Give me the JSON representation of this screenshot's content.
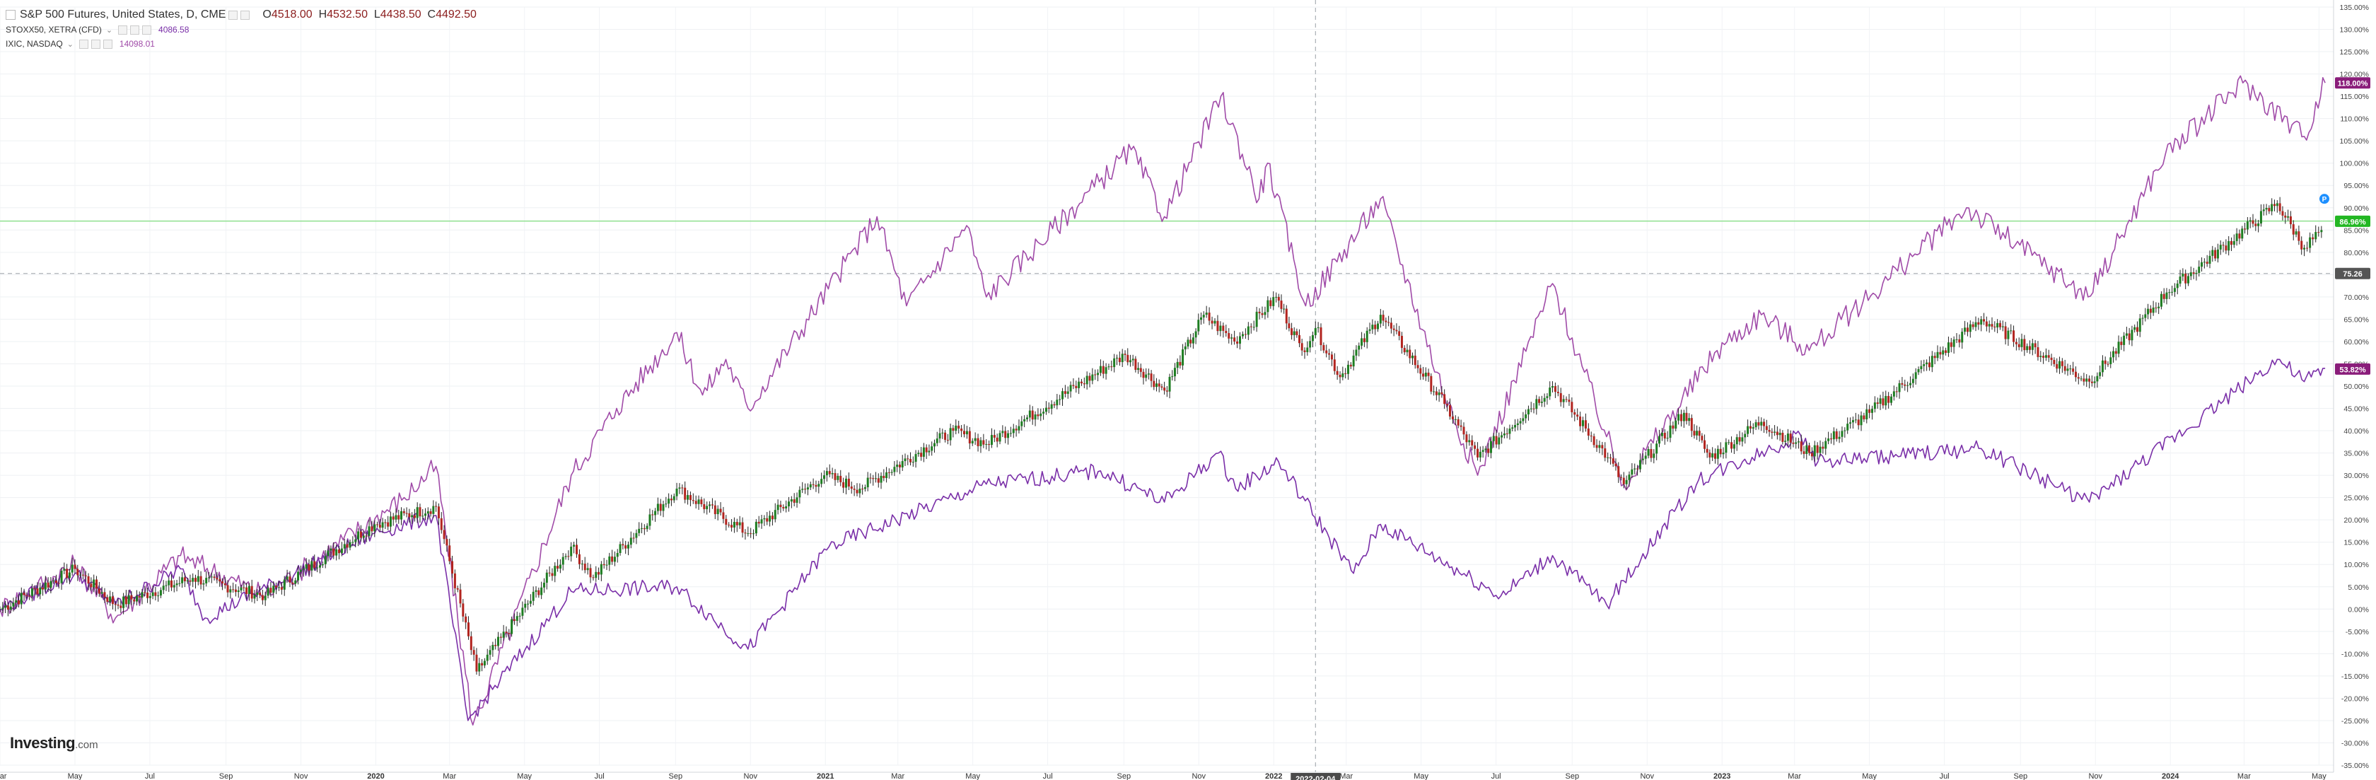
{
  "legend": {
    "main": {
      "symbol": "S&P 500 Futures, United States, D, CME",
      "o_label": "O",
      "o": "4518.00",
      "h_label": "H",
      "h": "4532.50",
      "l_label": "L",
      "l": "4438.50",
      "c_label": "C",
      "c": "4492.50"
    },
    "series2": {
      "symbol": "STOXX50, XETRA (CFD)",
      "value": "4086.58"
    },
    "series3": {
      "symbol": "IXIC, NASDAQ",
      "value": "14098.01"
    }
  },
  "watermark": {
    "bold": "Investing",
    "suffix": ".com"
  },
  "crosshair_label": "2022-02-04",
  "price_tags": {
    "ixic": "118.00%",
    "sp": "86.96%",
    "ref": "75.26",
    "stoxx": "53.82%",
    "marker": "P"
  },
  "colors": {
    "candle_up": "#1e7d22",
    "candle_down": "#b2241f",
    "candle_wick": "#222222",
    "ixic": "#a04ba8",
    "stoxx": "#7a2fa8",
    "sp_tag": "#23b723",
    "ixic_tag": "#8a1d7a",
    "stoxx_tag": "#8a1d7a",
    "ref_tag": "#555555",
    "hline": "#8fe08f",
    "marker": "#1e90ff"
  },
  "chart_data": {
    "type": "line",
    "title": "S&P 500 Futures, United States, D, CME",
    "y_unit": "percent change",
    "ylim": [
      -35,
      135
    ],
    "y_ticks": [
      "135.00%",
      "130.00%",
      "125.00%",
      "120.00%",
      "115.00%",
      "110.00%",
      "105.00%",
      "100.00%",
      "95.00%",
      "90.00%",
      "85.00%",
      "80.00%",
      "75.00%",
      "70.00%",
      "65.00%",
      "60.00%",
      "55.00%",
      "50.00%",
      "45.00%",
      "40.00%",
      "35.00%",
      "30.00%",
      "25.00%",
      "20.00%",
      "15.00%",
      "10.00%",
      "5.00%",
      "0.00%",
      "-5.00%",
      "-10.00%",
      "-15.00%",
      "-20.00%",
      "-25.00%",
      "-30.00%",
      "-35.00%"
    ],
    "x_ticks": [
      "Mar",
      "May",
      "Jul",
      "Sep",
      "Nov",
      "2020",
      "Mar",
      "May",
      "Jul",
      "Sep",
      "Nov",
      "2021",
      "Mar",
      "May",
      "Jul",
      "Sep",
      "Nov",
      "2022",
      "Mar",
      "May",
      "Jul",
      "Sep",
      "Nov",
      "2023",
      "Mar",
      "May",
      "Jul",
      "Sep",
      "Nov",
      "2024",
      "Mar",
      "May"
    ],
    "x_tick_dates": [
      "2019-03",
      "2019-05",
      "2019-07",
      "2019-09",
      "2019-11",
      "2020-01",
      "2020-03",
      "2020-05",
      "2020-07",
      "2020-09",
      "2020-11",
      "2021-01",
      "2021-03",
      "2021-05",
      "2021-07",
      "2021-09",
      "2021-11",
      "2022-01",
      "2022-03",
      "2022-05",
      "2022-07",
      "2022-09",
      "2022-11",
      "2023-01",
      "2023-03",
      "2023-05",
      "2023-07",
      "2023-09",
      "2023-11",
      "2024-01",
      "2024-03",
      "2024-05"
    ],
    "xlim": [
      "2019-03-01",
      "2024-05-10"
    ],
    "reference_line": 87,
    "ref_dashed": 75.26,
    "crosshair_x": "2022-02-04",
    "grid": true,
    "series": [
      {
        "name": "S&P 500 Futures, United States, D, CME",
        "style": "candles",
        "x": [
          "2019-03-01",
          "2019-05-01",
          "2019-06-03",
          "2019-08-05",
          "2019-10-03",
          "2019-12-31",
          "2020-02-19",
          "2020-03-23",
          "2020-06-08",
          "2020-06-26",
          "2020-09-02",
          "2020-10-30",
          "2020-12-31",
          "2021-01-29",
          "2021-04-15",
          "2021-05-12",
          "2021-09-02",
          "2021-10-04",
          "2021-11-05",
          "2021-11-30",
          "2022-01-03",
          "2022-01-24",
          "2022-02-04",
          "2022-02-24",
          "2022-03-29",
          "2022-05-20",
          "2022-06-16",
          "2022-08-16",
          "2022-09-30",
          "2022-10-13",
          "2022-12-01",
          "2022-12-22",
          "2023-02-02",
          "2023-03-13",
          "2023-05-01",
          "2023-07-31",
          "2023-10-27",
          "2023-12-29",
          "2024-03-28",
          "2024-04-19",
          "2024-05-03"
        ],
        "values": [
          0,
          9,
          1,
          7,
          3,
          19,
          23,
          -14,
          14,
          7,
          27,
          17,
          30,
          27,
          40,
          37,
          57,
          49,
          66,
          60,
          70,
          58,
          63,
          52,
          66,
          46,
          34,
          50,
          34,
          28,
          44,
          34,
          42,
          35,
          44,
          65,
          51,
          71,
          91,
          81,
          85
        ]
      },
      {
        "name": "IXIC, NASDAQ",
        "style": "line",
        "x": [
          "2019-03-01",
          "2019-05-01",
          "2019-06-03",
          "2019-07-26",
          "2019-10-03",
          "2020-01-24",
          "2020-02-19",
          "2020-03-20",
          "2020-06-08",
          "2020-07-15",
          "2020-09-02",
          "2020-09-23",
          "2020-10-12",
          "2020-10-30",
          "2021-02-12",
          "2021-03-08",
          "2021-04-26",
          "2021-05-12",
          "2021-09-07",
          "2021-10-04",
          "2021-11-19",
          "2021-12-20",
          "2021-12-27",
          "2022-01-27",
          "2022-03-29",
          "2022-05-20",
          "2022-06-16",
          "2022-08-16",
          "2022-10-13",
          "2022-12-28",
          "2023-02-02",
          "2023-03-13",
          "2023-07-19",
          "2023-10-26",
          "2023-12-28",
          "2024-02-29",
          "2024-04-19",
          "2024-05-06"
        ],
        "values": [
          0,
          10,
          -2,
          12,
          3,
          25,
          32,
          -26,
          30,
          45,
          62,
          48,
          56,
          45,
          88,
          68,
          86,
          70,
          103,
          88,
          115,
          92,
          100,
          68,
          92,
          48,
          30,
          73,
          28,
          58,
          66,
          58,
          90,
          70,
          102,
          118,
          106,
          118
        ]
      },
      {
        "name": "STOXX50, XETRA (CFD)",
        "style": "line",
        "x": [
          "2019-03-01",
          "2019-05-01",
          "2019-06-03",
          "2019-07-26",
          "2019-08-15",
          "2019-12-31",
          "2020-02-19",
          "2020-03-16",
          "2020-06-08",
          "2020-09-02",
          "2020-10-30",
          "2021-01-04",
          "2021-04-15",
          "2021-05-12",
          "2021-08-13",
          "2021-10-04",
          "2021-11-17",
          "2021-12-01",
          "2022-01-05",
          "2022-03-07",
          "2022-03-29",
          "2022-07-05",
          "2022-08-16",
          "2022-09-29",
          "2022-12-13",
          "2023-03-06",
          "2023-03-20",
          "2023-07-31",
          "2023-10-27",
          "2024-03-28",
          "2024-04-19",
          "2024-05-06"
        ],
        "values": [
          0,
          8,
          1,
          9,
          -2,
          17,
          21,
          -25,
          4,
          5,
          -9,
          14,
          25,
          28,
          31,
          24,
          35,
          27,
          33,
          8,
          19,
          3,
          12,
          1,
          29,
          39,
          33,
          36,
          24,
          56,
          51,
          54
        ]
      }
    ]
  }
}
